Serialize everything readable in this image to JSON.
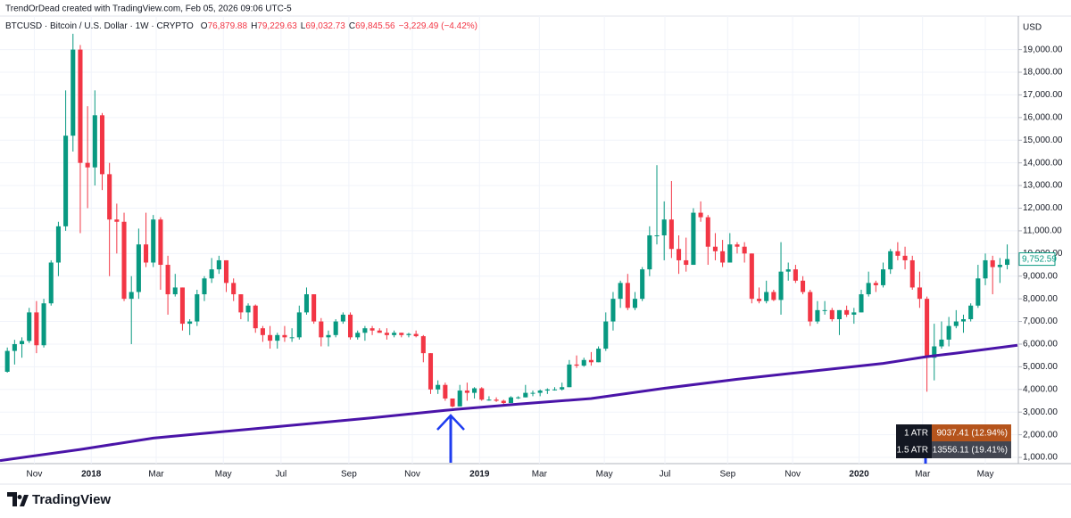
{
  "attribution": "TrendOrDead created with TradingView.com, Feb 05, 2026 09:06 UTC-5",
  "header": {
    "symbol": "BTCUSD · Bitcoin / U.S. Dollar · 1W · CRYPTO",
    "fields": [
      {
        "key": "O",
        "value": "76,879.88"
      },
      {
        "key": "H",
        "value": "79,229.63"
      },
      {
        "key": "L",
        "value": "69,032.73"
      },
      {
        "key": "C",
        "value": "69,845.56"
      }
    ],
    "change": "−3,229.49 (−4.42%)"
  },
  "atr": [
    {
      "label": "1 ATR",
      "value": "9037.41 (12.94%)",
      "color": "#b5541c"
    },
    {
      "label": "1.5 ATR",
      "value": "13556.11 (19.41%)",
      "color": "#434651"
    }
  ],
  "brand": "TradingView",
  "chart_data": {
    "type": "candlestick",
    "currency": "USD",
    "up_color": "#089981",
    "down_color": "#f23645",
    "grid": true,
    "last_price_label": "9,752.59",
    "xlim": [
      -1,
      138.4
    ],
    "ylim": [
      726,
      20480
    ],
    "xticks": [
      {
        "value": 3.7,
        "label": "Nov"
      },
      {
        "value": 11.5,
        "label": "2018"
      },
      {
        "value": 20.4,
        "label": "Mar"
      },
      {
        "value": 29.6,
        "label": "May"
      },
      {
        "value": 37.5,
        "label": "Jul"
      },
      {
        "value": 46.8,
        "label": "Sep"
      },
      {
        "value": 55.5,
        "label": "Nov"
      },
      {
        "value": 64.7,
        "label": "2019"
      },
      {
        "value": 72.9,
        "label": "Mar"
      },
      {
        "value": 81.8,
        "label": "May"
      },
      {
        "value": 90.1,
        "label": "Jul"
      },
      {
        "value": 98.7,
        "label": "Sep"
      },
      {
        "value": 107.6,
        "label": "Nov"
      },
      {
        "value": 116.7,
        "label": "2020"
      },
      {
        "value": 125.4,
        "label": "Mar"
      },
      {
        "value": 134.0,
        "label": "May"
      }
    ],
    "yticks": [
      {
        "value": 1000,
        "label": "1,000.00"
      },
      {
        "value": 2000,
        "label": "2,000.00"
      },
      {
        "value": 3000,
        "label": "3,000.00"
      },
      {
        "value": 4000,
        "label": "4,000.00"
      },
      {
        "value": 5000,
        "label": "5,000.00"
      },
      {
        "value": 6000,
        "label": "6,000.00"
      },
      {
        "value": 7000,
        "label": "7,000.00"
      },
      {
        "value": 8000,
        "label": "8,000.00"
      },
      {
        "value": 9000,
        "label": "9,000.00"
      },
      {
        "value": 10000,
        "label": "10,000.00"
      },
      {
        "value": 11000,
        "label": "11,000.00"
      },
      {
        "value": 12000,
        "label": "12,000.00"
      },
      {
        "value": 13000,
        "label": "13,000.00"
      },
      {
        "value": 14000,
        "label": "14,000.00"
      },
      {
        "value": 15000,
        "label": "15,000.00"
      },
      {
        "value": 16000,
        "label": "16,000.00"
      },
      {
        "value": 17000,
        "label": "17,000.00"
      },
      {
        "value": 18000,
        "label": "18,000.00"
      },
      {
        "value": 19000,
        "label": "19,000.00"
      }
    ],
    "open": [
      4780,
      5700,
      6000,
      6140,
      7400,
      5950,
      7800,
      9600,
      11200,
      15200,
      19000,
      14000,
      13800,
      16100,
      13500,
      11500,
      11400,
      8000,
      8300,
      10400,
      9600,
      11500,
      9500,
      8200,
      8500,
      6900,
      7000,
      8200,
      8900,
      9300,
      9700,
      8700,
      8200,
      7400,
      7700,
      6700,
      6400,
      6150,
      6400,
      6300,
      6300,
      7400,
      8200,
      7000,
      6300,
      6400,
      7000,
      7300,
      6300,
      6500,
      6700,
      6600,
      6500,
      6400,
      6500,
      6400,
      6450,
      6350,
      5600,
      4000,
      4200,
      3600,
      3250,
      3950,
      3850,
      4050,
      3550,
      3550,
      3500,
      3400,
      3650,
      3650,
      3850,
      3850,
      3950,
      4000,
      4000,
      4100,
      5100,
      5050,
      5300,
      5200,
      5800,
      7000,
      8000,
      8700,
      7600,
      8000,
      9300,
      10800,
      10800,
      11500,
      10200,
      9700,
      9500,
      11800,
      11600,
      10300,
      10100,
      9600,
      10400,
      10300,
      10000,
      8000,
      7900,
      8300,
      7950,
      9200,
      9300,
      8800,
      8300,
      7000,
      7500,
      7500,
      7100,
      7500,
      7300,
      7400,
      8200,
      8700,
      8600,
      9300,
      10100,
      9900,
      9700,
      8500,
      8000,
      5400,
      5900,
      6200,
      6800,
      7000,
      7100,
      7700,
      8900,
      9700,
      9400,
      9500
    ],
    "high": [
      5850,
      6190,
      6300,
      7600,
      7900,
      8000,
      9700,
      11400,
      17200,
      19700,
      19200,
      16500,
      17200,
      16200,
      14000,
      12200,
      11800,
      9000,
      11100,
      11800,
      11700,
      11600,
      9900,
      9100,
      8500,
      7100,
      8400,
      9000,
      9800,
      9900,
      9700,
      8900,
      8200,
      7800,
      7750,
      6800,
      6800,
      6500,
      6800,
      6700,
      7700,
      8500,
      8200,
      7150,
      6600,
      7100,
      7400,
      7400,
      6600,
      6800,
      6800,
      6700,
      6700,
      6600,
      6500,
      6500,
      6600,
      6400,
      5600,
      4400,
      4300,
      3600,
      4200,
      4300,
      4100,
      4100,
      3700,
      3650,
      3550,
      3700,
      3700,
      4200,
      3950,
      4000,
      4050,
      4100,
      4300,
      5300,
      5500,
      5400,
      5650,
      5900,
      7400,
      8300,
      8800,
      9100,
      8300,
      9400,
      11200,
      13900,
      12300,
      13200,
      10800,
      10700,
      12000,
      12300,
      11700,
      10900,
      10600,
      10900,
      10500,
      10500,
      10000,
      8500,
      8800,
      8400,
      10500,
      9600,
      9500,
      9000,
      8400,
      7900,
      7900,
      7600,
      7500,
      7700,
      7600,
      8400,
      9200,
      8800,
      9600,
      10200,
      10500,
      10300,
      9900,
      9200,
      8100,
      6900,
      7000,
      7200,
      7500,
      7300,
      7800,
      9500,
      10000,
      9900,
      9800,
      10400
    ],
    "low": [
      4740,
      5100,
      5400,
      6050,
      5600,
      5850,
      7700,
      9000,
      11000,
      14500,
      10900,
      12000,
      13000,
      12800,
      9000,
      10000,
      7900,
      6000,
      8000,
      9400,
      9400,
      8400,
      7300,
      8100,
      6600,
      6400,
      6800,
      7900,
      8700,
      9100,
      8300,
      7900,
      7100,
      7000,
      6500,
      6100,
      5800,
      5800,
      6100,
      6100,
      6200,
      7300,
      6900,
      5900,
      5900,
      6300,
      6900,
      6200,
      6200,
      6150,
      6400,
      6500,
      6200,
      6300,
      6300,
      6300,
      6300,
      5200,
      3800,
      3800,
      3500,
      3200,
      3250,
      3500,
      3600,
      3500,
      3500,
      3450,
      3350,
      3400,
      3580,
      3650,
      3700,
      3700,
      3800,
      3950,
      3950,
      4100,
      4950,
      5000,
      5050,
      5200,
      5700,
      6600,
      7600,
      7500,
      7500,
      7900,
      9000,
      10400,
      9700,
      9800,
      9100,
      9200,
      9500,
      11400,
      9500,
      9700,
      9400,
      9600,
      10000,
      9600,
      7800,
      7800,
      7800,
      7900,
      7300,
      8800,
      8700,
      8200,
      6800,
      6900,
      7300,
      7000,
      6400,
      7200,
      6900,
      7400,
      8100,
      8300,
      8500,
      9100,
      9700,
      9300,
      8400,
      7600,
      3900,
      4400,
      5800,
      5900,
      6700,
      6500,
      7000,
      7600,
      8600,
      8200,
      8700,
      9300
    ],
    "close": [
      5700,
      6000,
      6140,
      7400,
      5950,
      7800,
      9600,
      11200,
      15200,
      19000,
      14000,
      13800,
      16100,
      13500,
      11500,
      11400,
      8000,
      8300,
      10400,
      9600,
      11500,
      9500,
      8200,
      8500,
      6900,
      7000,
      8200,
      8900,
      9300,
      9700,
      8700,
      8200,
      7400,
      7700,
      6700,
      6400,
      6150,
      6400,
      6300,
      6300,
      7400,
      8200,
      7000,
      6300,
      6400,
      7000,
      7300,
      6300,
      6500,
      6700,
      6600,
      6500,
      6400,
      6500,
      6400,
      6450,
      6350,
      5600,
      4000,
      4200,
      3600,
      3250,
      3950,
      3850,
      4050,
      3550,
      3550,
      3500,
      3400,
      3650,
      3650,
      3850,
      3850,
      3950,
      4000,
      4000,
      4100,
      5100,
      5050,
      5300,
      5200,
      5800,
      7000,
      8000,
      8700,
      7600,
      8000,
      9300,
      10800,
      10800,
      11500,
      10200,
      9700,
      9500,
      11800,
      11600,
      10300,
      10100,
      9600,
      10400,
      10300,
      10000,
      8000,
      7900,
      8300,
      7950,
      9200,
      9300,
      8800,
      8300,
      7000,
      7500,
      7500,
      7100,
      7500,
      7300,
      7400,
      8200,
      8700,
      8600,
      9300,
      10100,
      9900,
      9700,
      8500,
      8000,
      5400,
      5900,
      6200,
      6800,
      7000,
      7100,
      7700,
      8900,
      9700,
      9400,
      9500,
      9752.59
    ],
    "lines": [
      {
        "color": "#4a14a8",
        "x": [
          -1,
          10,
          20,
          30,
          40,
          50,
          60,
          70,
          80,
          90,
          100,
          110,
          120,
          126,
          130,
          138.4
        ],
        "values": [
          860,
          1350,
          1850,
          2150,
          2450,
          2750,
          3080,
          3350,
          3600,
          4050,
          4450,
          4800,
          5150,
          5450,
          5600,
          5950
        ]
      }
    ]
  }
}
